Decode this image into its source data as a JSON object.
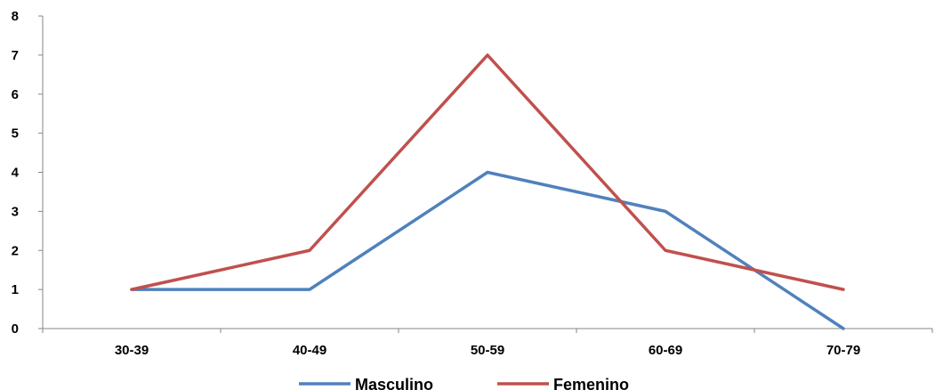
{
  "chart_data": {
    "type": "line",
    "categories": [
      "30-39",
      "40-49",
      "50-59",
      "60-69",
      "70-79"
    ],
    "series": [
      {
        "name": "Masculino",
        "values": [
          1,
          1,
          4,
          3,
          0
        ],
        "color": "#4F81BD"
      },
      {
        "name": "Femenino",
        "values": [
          1,
          2,
          7,
          2,
          1
        ],
        "color": "#C0504D"
      }
    ],
    "y_ticks": [
      "0",
      "1",
      "2",
      "3",
      "4",
      "5",
      "6",
      "7",
      "8"
    ],
    "ylim": [
      0,
      8
    ],
    "grid": false,
    "legend_position": "bottom"
  }
}
